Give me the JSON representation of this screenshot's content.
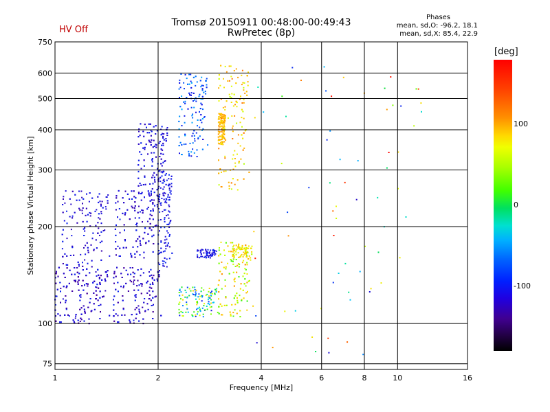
{
  "header": {
    "hv_status": "HV Off",
    "title": "Tromsø 20150911 00:48:00-00:49:43",
    "subtitle": "RwPretec (8p)"
  },
  "phase_stats": {
    "heading": "Phases",
    "line_o": "mean, sd,O: -96.2, 18.1",
    "line_x": "mean, sd,X:  85.4, 22.9"
  },
  "colorbar": {
    "unit": "[deg]",
    "ticks": [
      "100",
      "0",
      "-100"
    ],
    "tick_values": [
      100,
      0,
      -100
    ],
    "range": [
      -180,
      180
    ]
  },
  "chart_data": {
    "type": "scatter",
    "xlabel": "Frequency [MHz]",
    "ylabel": "Stationary phase Virtual Height [km]",
    "x_scale": "log",
    "y_scale": "log",
    "xlim": [
      1,
      16
    ],
    "ylim": [
      72,
      750
    ],
    "x_ticks": [
      1,
      2,
      4,
      6,
      8,
      10,
      16
    ],
    "x_tick_labels": [
      "1",
      "2",
      "4",
      "6",
      "8",
      "10",
      "16"
    ],
    "y_ticks": [
      75,
      100,
      200,
      300,
      400,
      500,
      600,
      750
    ],
    "y_tick_labels": [
      "75",
      "100",
      "200",
      "300",
      "400",
      "500",
      "600",
      "750"
    ],
    "grid": true,
    "clusters": [
      {
        "f_range": [
          1.0,
          1.45
        ],
        "h_range": [
          100,
          150
        ],
        "phase_range": [
          -130,
          -85
        ],
        "n": 420
      },
      {
        "f_range": [
          1.05,
          1.45
        ],
        "h_range": [
          150,
          260
        ],
        "phase_range": [
          -120,
          -85
        ],
        "n": 220
      },
      {
        "f_range": [
          1.48,
          2.05
        ],
        "h_range": [
          100,
          150
        ],
        "phase_range": [
          -130,
          -85
        ],
        "n": 300
      },
      {
        "f_range": [
          1.5,
          2.05
        ],
        "h_range": [
          160,
          260
        ],
        "phase_range": [
          -120,
          -85
        ],
        "n": 340
      },
      {
        "f_range": [
          1.75,
          2.15
        ],
        "h_range": [
          250,
          420
        ],
        "phase_range": [
          -115,
          -85
        ],
        "n": 260
      },
      {
        "f_range": [
          2.0,
          2.2
        ],
        "h_range": [
          150,
          300
        ],
        "phase_range": [
          -110,
          -80
        ],
        "n": 140
      },
      {
        "f_range": [
          2.3,
          2.8
        ],
        "h_range": [
          330,
          600
        ],
        "phase_range": [
          -100,
          -40
        ],
        "n": 180
      },
      {
        "f_range": [
          2.3,
          3.0
        ],
        "h_range": [
          105,
          130
        ],
        "phase_range": [
          -100,
          100
        ],
        "n": 120
      },
      {
        "f_range": [
          2.6,
          3.0
        ],
        "h_range": [
          160,
          170
        ],
        "phase_range": [
          -110,
          -80
        ],
        "n": 60
      },
      {
        "f_range": [
          3.0,
          3.15
        ],
        "h_range": [
          360,
          450
        ],
        "phase_range": [
          90,
          120
        ],
        "n": 120
      },
      {
        "f_range": [
          3.0,
          3.7
        ],
        "h_range": [
          260,
          640
        ],
        "phase_range": [
          60,
          130
        ],
        "n": 160
      },
      {
        "f_range": [
          3.0,
          3.8
        ],
        "h_range": [
          105,
          180
        ],
        "phase_range": [
          30,
          120
        ],
        "n": 220
      },
      {
        "f_range": [
          3.3,
          3.7
        ],
        "h_range": [
          160,
          175
        ],
        "phase_range": [
          60,
          110
        ],
        "n": 60
      },
      {
        "f_range": [
          3.8,
          12.5
        ],
        "h_range": [
          80,
          650
        ],
        "phase_range": [
          -120,
          180
        ],
        "n": 70
      }
    ]
  }
}
